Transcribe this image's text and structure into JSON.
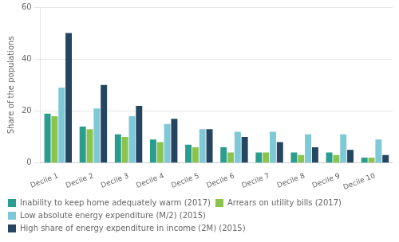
{
  "chart_data": {
    "type": "bar",
    "categories": [
      "Decile 1",
      "Decile 2",
      "Decile 3",
      "Decile 4",
      "Decile 5",
      "Decile 6",
      "Decile 7",
      "Decile 8",
      "Decile 9",
      "Decile 10"
    ],
    "series": [
      {
        "name": "Inability to keep home adequately warm (2017)",
        "color": "#2a9d8f",
        "values": [
          19,
          14,
          11,
          9,
          7,
          6,
          4,
          4,
          4,
          2
        ]
      },
      {
        "name": "Arrears on utility bills (2017)",
        "color": "#8ac44e",
        "values": [
          18,
          13,
          10,
          8,
          6,
          4,
          4,
          3,
          3,
          2
        ]
      },
      {
        "name": "Low absolute energy expenditure (M/2) (2015)",
        "color": "#7ec8d8",
        "values": [
          29,
          21,
          18,
          15,
          13,
          12,
          12,
          11,
          11,
          9
        ]
      },
      {
        "name": "High share of energy expenditure in income (2M) (2015)",
        "color": "#264560",
        "values": [
          50,
          30,
          22,
          17,
          13,
          10,
          8,
          6,
          5,
          3
        ]
      }
    ],
    "ylabel": "Share of the populations",
    "ylim": [
      0,
      60
    ],
    "yticks": [
      0,
      20,
      40,
      60
    ],
    "grid": true,
    "legend": "bottom"
  }
}
